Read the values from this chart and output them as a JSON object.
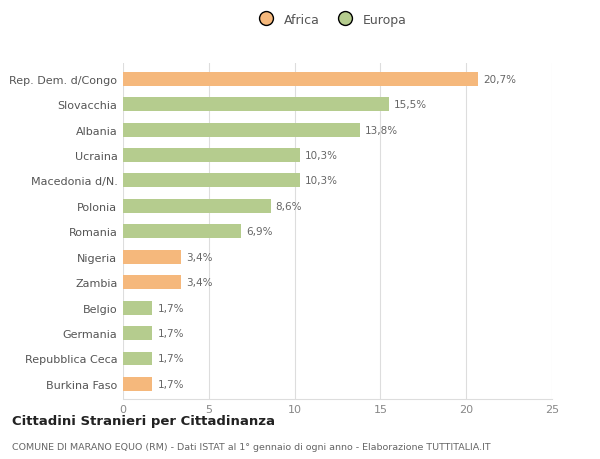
{
  "categories": [
    "Rep. Dem. d/Congo",
    "Slovacchia",
    "Albania",
    "Ucraina",
    "Macedonia d/N.",
    "Polonia",
    "Romania",
    "Nigeria",
    "Zambia",
    "Belgio",
    "Germania",
    "Repubblica Ceca",
    "Burkina Faso"
  ],
  "values": [
    20.7,
    15.5,
    13.8,
    10.3,
    10.3,
    8.6,
    6.9,
    3.4,
    3.4,
    1.7,
    1.7,
    1.7,
    1.7
  ],
  "labels": [
    "20,7%",
    "15,5%",
    "13,8%",
    "10,3%",
    "10,3%",
    "8,6%",
    "6,9%",
    "3,4%",
    "3,4%",
    "1,7%",
    "1,7%",
    "1,7%",
    "1,7%"
  ],
  "colors": [
    "#f5b87c",
    "#b5cc8e",
    "#b5cc8e",
    "#b5cc8e",
    "#b5cc8e",
    "#b5cc8e",
    "#b5cc8e",
    "#f5b87c",
    "#f5b87c",
    "#b5cc8e",
    "#b5cc8e",
    "#b5cc8e",
    "#f5b87c"
  ],
  "africa_color": "#f5b87c",
  "europa_color": "#b5cc8e",
  "xlim": [
    0,
    25
  ],
  "xticks": [
    0,
    5,
    10,
    15,
    20,
    25
  ],
  "title": "Cittadini Stranieri per Cittadinanza",
  "subtitle": "COMUNE DI MARANO EQUO (RM) - Dati ISTAT al 1° gennaio di ogni anno - Elaborazione TUTTITALIA.IT",
  "background_color": "#ffffff",
  "grid_color": "#dddddd",
  "bar_height": 0.55,
  "legend_africa": "Africa",
  "legend_europa": "Europa"
}
